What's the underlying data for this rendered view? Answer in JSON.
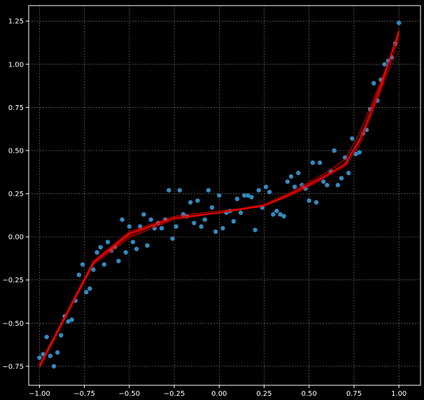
{
  "chart_data": {
    "type": "scatter",
    "title": "",
    "xlabel": "",
    "ylabel": "",
    "xlim": [
      -1.06,
      1.12
    ],
    "ylim": [
      -0.86,
      1.34
    ],
    "grid": true,
    "background": "#000000",
    "x_ticks": [
      -1.0,
      -0.75,
      -0.5,
      -0.25,
      0.0,
      0.25,
      0.5,
      0.75,
      1.0
    ],
    "x_tick_labels": [
      "−1.00",
      "−0.75",
      "−0.50",
      "−0.25",
      "0.00",
      "0.25",
      "0.50",
      "0.75",
      "1.00"
    ],
    "y_ticks": [
      -0.75,
      -0.5,
      -0.25,
      0.0,
      0.25,
      0.5,
      0.75,
      1.0,
      1.25
    ],
    "y_tick_labels": [
      "−0.75",
      "−0.50",
      "−0.25",
      "0.00",
      "0.25",
      "0.50",
      "0.75",
      "1.00",
      "1.25"
    ],
    "scatter_color": "#348abd",
    "line_color": "#ff0000",
    "line_color_faint": "#8b0000",
    "points": [
      [
        -1.0,
        -0.7
      ],
      [
        -0.98,
        -0.68
      ],
      [
        -0.96,
        -0.58
      ],
      [
        -0.94,
        -0.69
      ],
      [
        -0.92,
        -0.75
      ],
      [
        -0.9,
        -0.67
      ],
      [
        -0.88,
        -0.57
      ],
      [
        -0.86,
        -0.46
      ],
      [
        -0.84,
        -0.49
      ],
      [
        -0.82,
        -0.48
      ],
      [
        -0.8,
        -0.37
      ],
      [
        -0.78,
        -0.22
      ],
      [
        -0.76,
        -0.16
      ],
      [
        -0.74,
        -0.32
      ],
      [
        -0.72,
        -0.3
      ],
      [
        -0.7,
        -0.19
      ],
      [
        -0.68,
        -0.09
      ],
      [
        -0.66,
        -0.06
      ],
      [
        -0.64,
        -0.16
      ],
      [
        -0.62,
        -0.03
      ],
      [
        -0.6,
        -0.08
      ],
      [
        -0.58,
        -0.06
      ],
      [
        -0.56,
        -0.14
      ],
      [
        -0.54,
        0.1
      ],
      [
        -0.52,
        -0.09
      ],
      [
        -0.5,
        0.06
      ],
      [
        -0.48,
        -0.03
      ],
      [
        -0.46,
        -0.07
      ],
      [
        -0.44,
        0.06
      ],
      [
        -0.42,
        0.13
      ],
      [
        -0.4,
        -0.05
      ],
      [
        -0.38,
        0.1
      ],
      [
        -0.36,
        0.05
      ],
      [
        -0.34,
        0.08
      ],
      [
        -0.32,
        0.05
      ],
      [
        -0.3,
        0.1
      ],
      [
        -0.28,
        0.27
      ],
      [
        -0.26,
        -0.01
      ],
      [
        -0.24,
        0.06
      ],
      [
        -0.22,
        0.27
      ],
      [
        -0.2,
        0.13
      ],
      [
        -0.18,
        0.12
      ],
      [
        -0.16,
        0.2
      ],
      [
        -0.14,
        0.08
      ],
      [
        -0.12,
        0.21
      ],
      [
        -0.1,
        0.06
      ],
      [
        -0.08,
        0.1
      ],
      [
        -0.06,
        0.27
      ],
      [
        -0.04,
        0.17
      ],
      [
        -0.02,
        0.03
      ],
      [
        0.0,
        0.24
      ],
      [
        0.02,
        0.05
      ],
      [
        0.04,
        0.14
      ],
      [
        0.06,
        0.15
      ],
      [
        0.08,
        0.09
      ],
      [
        0.1,
        0.22
      ],
      [
        0.12,
        0.14
      ],
      [
        0.14,
        0.24
      ],
      [
        0.16,
        0.24
      ],
      [
        0.18,
        0.23
      ],
      [
        0.2,
        0.04
      ],
      [
        0.22,
        0.27
      ],
      [
        0.24,
        0.17
      ],
      [
        0.26,
        0.29
      ],
      [
        0.28,
        0.26
      ],
      [
        0.3,
        0.13
      ],
      [
        0.32,
        0.15
      ],
      [
        0.34,
        0.13
      ],
      [
        0.36,
        0.12
      ],
      [
        0.38,
        0.32
      ],
      [
        0.4,
        0.35
      ],
      [
        0.42,
        0.29
      ],
      [
        0.44,
        0.37
      ],
      [
        0.46,
        0.3
      ],
      [
        0.48,
        0.28
      ],
      [
        0.5,
        0.21
      ],
      [
        0.52,
        0.43
      ],
      [
        0.54,
        0.2
      ],
      [
        0.56,
        0.43
      ],
      [
        0.58,
        0.32
      ],
      [
        0.6,
        0.3
      ],
      [
        0.62,
        0.38
      ],
      [
        0.64,
        0.5
      ],
      [
        0.66,
        0.3
      ],
      [
        0.68,
        0.34
      ],
      [
        0.7,
        0.46
      ],
      [
        0.72,
        0.37
      ],
      [
        0.74,
        0.57
      ],
      [
        0.76,
        0.48
      ],
      [
        0.78,
        0.49
      ],
      [
        0.8,
        0.6
      ],
      [
        0.82,
        0.62
      ],
      [
        0.84,
        0.74
      ],
      [
        0.86,
        0.89
      ],
      [
        0.88,
        0.79
      ],
      [
        0.9,
        0.91
      ],
      [
        0.92,
        1.0
      ],
      [
        0.94,
        1.02
      ],
      [
        0.96,
        1.04
      ],
      [
        0.98,
        1.12
      ],
      [
        1.0,
        1.24
      ]
    ],
    "fit_lines": [
      {
        "x": [
          -1.0,
          -0.7,
          -0.5,
          -0.25,
          0.0,
          0.25,
          0.4,
          0.55,
          0.7,
          0.78,
          0.9,
          1.0
        ],
        "y": [
          -0.75,
          -0.15,
          0.02,
          0.11,
          0.14,
          0.18,
          0.25,
          0.33,
          0.42,
          0.56,
          0.88,
          1.19
        ]
      },
      {
        "x": [
          -1.0,
          -0.7,
          -0.5,
          -0.25,
          0.0,
          0.25,
          0.4,
          0.55,
          0.7,
          0.78,
          0.9,
          1.0
        ],
        "y": [
          -0.76,
          -0.16,
          0.0,
          0.1,
          0.14,
          0.19,
          0.26,
          0.34,
          0.45,
          0.6,
          0.9,
          1.17
        ]
      },
      {
        "x": [
          -1.0,
          -0.7,
          -0.5,
          -0.25,
          0.0,
          0.25,
          0.4,
          0.55,
          0.7,
          0.78,
          0.9,
          1.0
        ],
        "y": [
          -0.74,
          -0.14,
          0.03,
          0.12,
          0.15,
          0.18,
          0.24,
          0.32,
          0.41,
          0.53,
          0.85,
          1.15
        ]
      },
      {
        "x": [
          -1.0,
          -0.7,
          -0.5,
          -0.25,
          0.0,
          0.25,
          0.4,
          0.55,
          0.7,
          0.78,
          0.9,
          1.0
        ],
        "y": [
          -0.75,
          -0.16,
          -0.01,
          0.11,
          0.14,
          0.19,
          0.26,
          0.35,
          0.43,
          0.57,
          0.87,
          1.08
        ]
      },
      {
        "x": [
          -1.0,
          -0.7,
          -0.5,
          -0.25,
          0.0,
          0.25,
          0.4,
          0.55,
          0.7,
          0.78,
          0.9,
          1.0
        ],
        "y": [
          -0.75,
          -0.15,
          0.01,
          0.11,
          0.14,
          0.18,
          0.25,
          0.33,
          0.42,
          0.55,
          0.86,
          1.2
        ]
      }
    ]
  }
}
